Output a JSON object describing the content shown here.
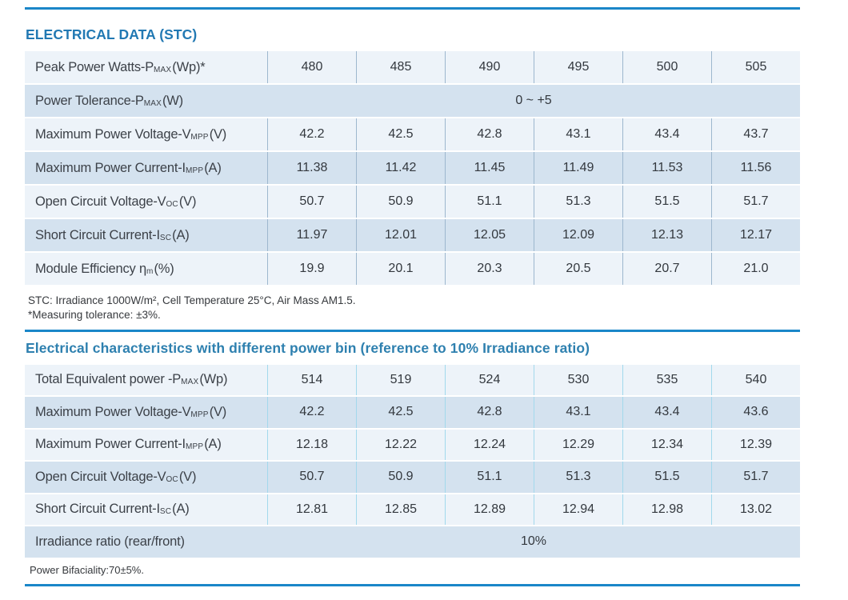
{
  "colors": {
    "accent_rule": "#1a86c8",
    "section1_title": "#2279b3",
    "section2_title": "#2e80af",
    "row_light": "#edf3f9",
    "row_dark": "#d4e2ef",
    "divider_table1": "#9db7ce",
    "divider_table2": "#a2d8ec"
  },
  "section1": {
    "title": "ELECTRICAL DATA (STC)",
    "rows": [
      {
        "prefix": "Peak Power Watts-P",
        "sub": "MAX",
        "suffix": " (Wp)*",
        "values": [
          "480",
          "485",
          "490",
          "495",
          "500",
          "505"
        ]
      },
      {
        "prefix": "Power Tolerance-P",
        "sub": "MAX",
        "suffix": " (W)",
        "span_value": "0 ~ +5"
      },
      {
        "prefix": "Maximum Power Voltage-V",
        "sub": "MPP",
        "suffix": " (V)",
        "values": [
          "42.2",
          "42.5",
          "42.8",
          "43.1",
          "43.4",
          "43.7"
        ]
      },
      {
        "prefix": "Maximum Power Current-I",
        "sub": "MPP",
        "suffix": " (A)",
        "values": [
          "11.38",
          "11.42",
          "11.45",
          "11.49",
          "11.53",
          "11.56"
        ]
      },
      {
        "prefix": "Open Circuit Voltage-V",
        "sub": "OC",
        "suffix": " (V)",
        "values": [
          "50.7",
          "50.9",
          "51.1",
          "51.3",
          "51.5",
          "51.7"
        ]
      },
      {
        "prefix": "Short Circuit Current-I",
        "sub": "SC",
        "suffix": " (A)",
        "values": [
          "11.97",
          "12.01",
          "12.05",
          "12.09",
          "12.13",
          "12.17"
        ]
      },
      {
        "prefix": "Module Efficiency η ",
        "sub": "m",
        "suffix": " (%)",
        "values": [
          "19.9",
          "20.1",
          "20.3",
          "20.5",
          "20.7",
          "21.0"
        ]
      }
    ],
    "notes": [
      "STC: Irradiance 1000W/m², Cell Temperature 25°C, Air Mass AM1.5.",
      "*Measuring tolerance: ±3%."
    ]
  },
  "section2": {
    "title": "Electrical characteristics with different power bin (reference to 10% Irradiance ratio)",
    "rows": [
      {
        "prefix": "Total Equivalent power -P",
        "sub": "MAX",
        "suffix": " (Wp)",
        "values": [
          "514",
          "519",
          "524",
          "530",
          "535",
          "540"
        ]
      },
      {
        "prefix": "Maximum Power Voltage-V",
        "sub": "MPP",
        "suffix": " (V)",
        "values": [
          "42.2",
          "42.5",
          "42.8",
          "43.1",
          "43.4",
          "43.6"
        ]
      },
      {
        "prefix": "Maximum Power Current-I",
        "sub": "MPP",
        "suffix": " (A)",
        "values": [
          "12.18",
          "12.22",
          "12.24",
          "12.29",
          "12.34",
          "12.39"
        ]
      },
      {
        "prefix": "Open Circuit Voltage-V",
        "sub": "OC",
        "suffix": " (V)",
        "values": [
          "50.7",
          "50.9",
          "51.1",
          "51.3",
          "51.5",
          "51.7"
        ]
      },
      {
        "prefix": "Short Circuit Current-I",
        "sub": "SC",
        "suffix": " (A)",
        "values": [
          "12.81",
          "12.85",
          "12.89",
          "12.94",
          "12.98",
          "13.02"
        ]
      },
      {
        "prefix": "Irradiance ratio (rear/front)",
        "sub": "",
        "suffix": "",
        "span_value": "10%"
      }
    ],
    "note": "Power Bifaciality:70±5%."
  }
}
